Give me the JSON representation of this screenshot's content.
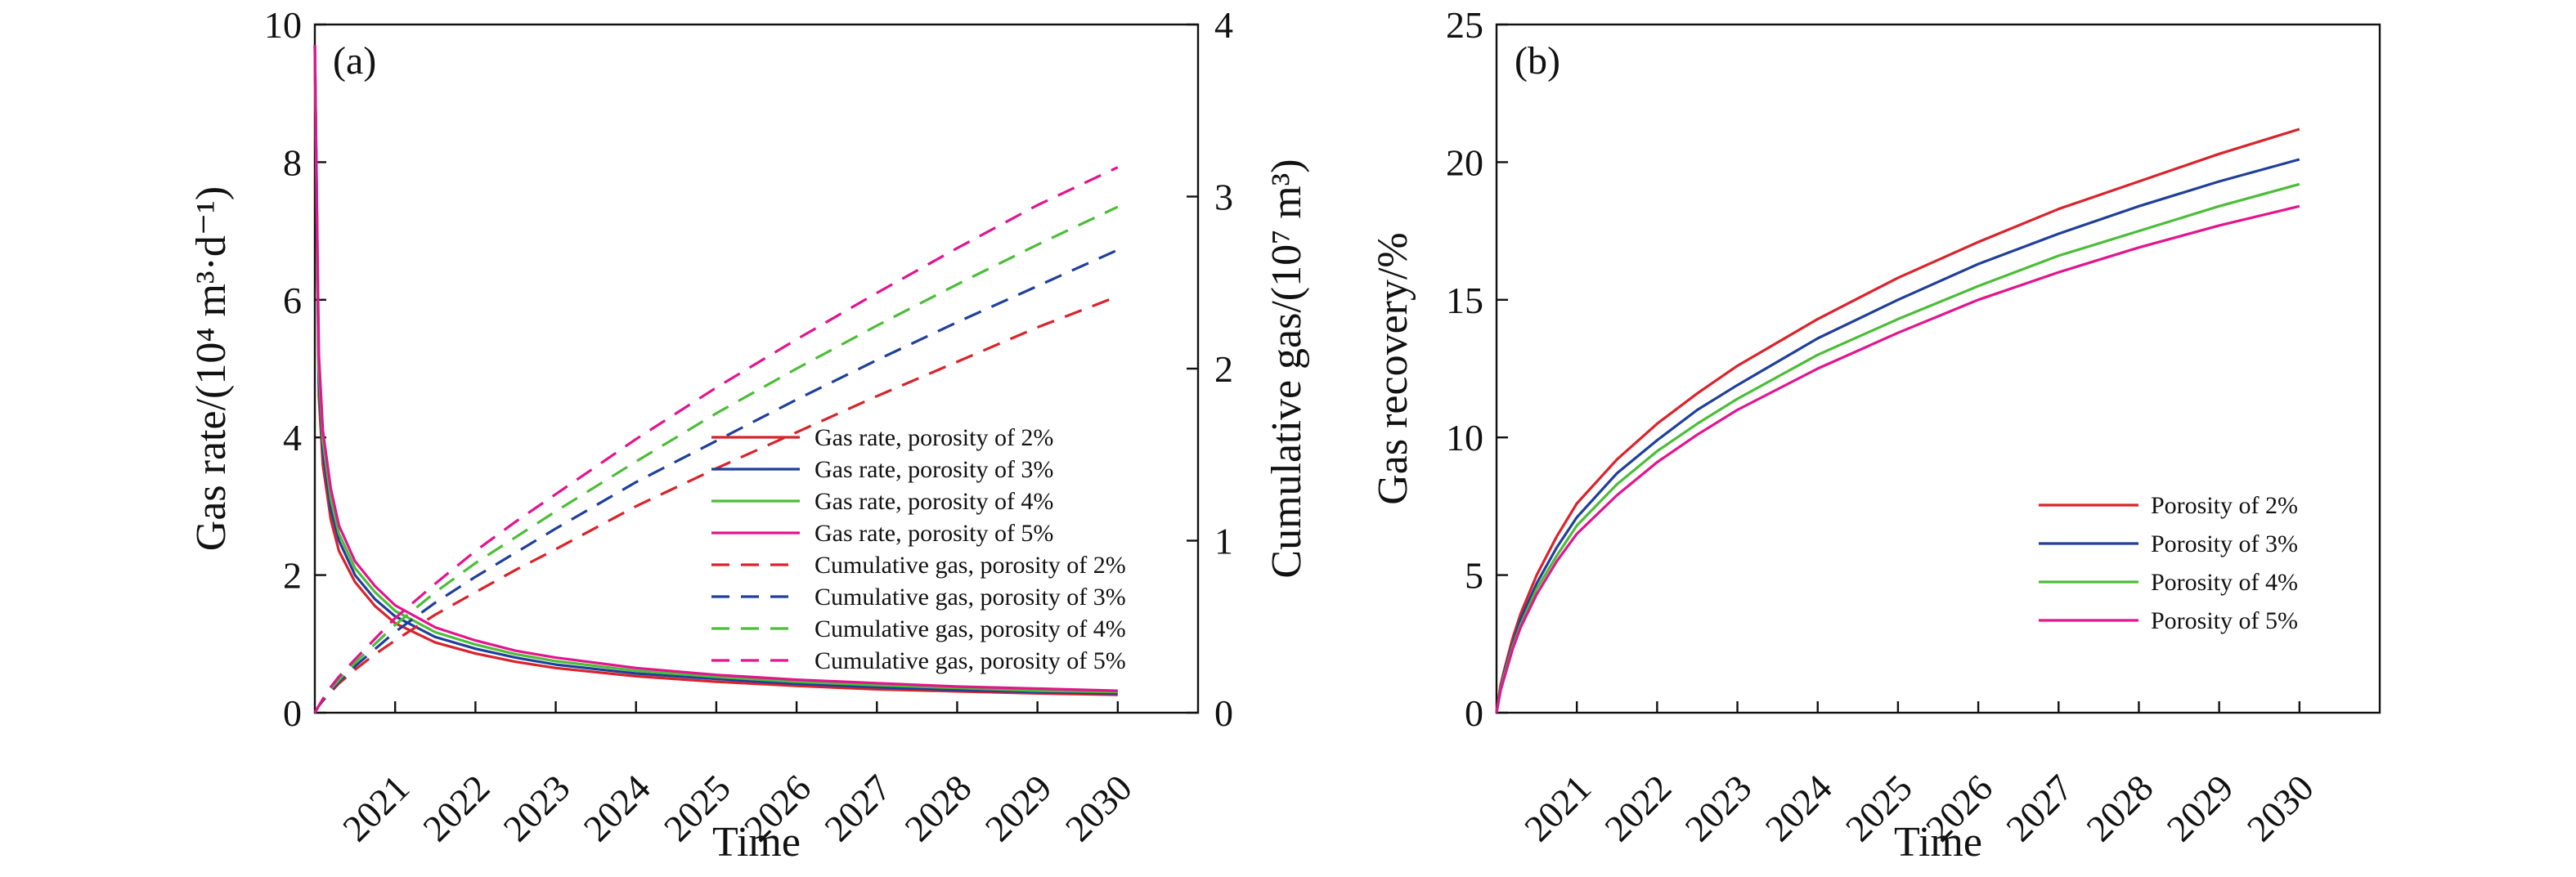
{
  "colors": {
    "p2": "#d9232b",
    "p3": "#1f3f9a",
    "p4": "#4cbd38",
    "p5": "#e2148e"
  },
  "chart_data": [
    {
      "type": "line",
      "panel_label": "(a)",
      "xlabel": "Time",
      "ylabel": "Gas rate/(10⁴ m³·d⁻¹)",
      "y2label": "Cumulative gas/(10⁷ m³)",
      "xlim": [
        2020.0,
        2031.0
      ],
      "ylim": [
        0,
        10
      ],
      "y2lim": [
        0,
        4
      ],
      "xticks": [
        2021,
        2022,
        2023,
        2024,
        2025,
        2026,
        2027,
        2028,
        2029,
        2030
      ],
      "yticks": [
        0,
        2,
        4,
        6,
        8,
        10
      ],
      "y2ticks": [
        0,
        1,
        2,
        3,
        4
      ],
      "legend_position": "center-right",
      "x": [
        2020.0,
        2020.05,
        2020.1,
        2020.2,
        2020.3,
        2020.5,
        2020.75,
        2021.0,
        2021.5,
        2022.0,
        2022.5,
        2023.0,
        2024.0,
        2025.0,
        2026.0,
        2027.0,
        2028.0,
        2029.0,
        2030.0
      ],
      "series": [
        {
          "name": "Gas rate, porosity of 2%",
          "axis": "left",
          "style": "solid",
          "color_key": "p2",
          "values": [
            9.7,
            4.6,
            3.6,
            2.8,
            2.35,
            1.9,
            1.55,
            1.3,
            1.02,
            0.86,
            0.74,
            0.65,
            0.53,
            0.45,
            0.39,
            0.34,
            0.31,
            0.28,
            0.26
          ]
        },
        {
          "name": "Gas rate, porosity of 3%",
          "axis": "left",
          "style": "solid",
          "color_key": "p3",
          "values": [
            9.7,
            4.8,
            3.8,
            2.95,
            2.5,
            2.0,
            1.65,
            1.4,
            1.1,
            0.93,
            0.8,
            0.7,
            0.57,
            0.49,
            0.42,
            0.37,
            0.33,
            0.3,
            0.28
          ]
        },
        {
          "name": "Gas rate, porosity of 4%",
          "axis": "left",
          "style": "solid",
          "color_key": "p4",
          "values": [
            9.7,
            5.0,
            3.95,
            3.1,
            2.6,
            2.1,
            1.75,
            1.48,
            1.17,
            0.99,
            0.85,
            0.75,
            0.61,
            0.52,
            0.45,
            0.4,
            0.36,
            0.32,
            0.3
          ]
        },
        {
          "name": "Gas rate, porosity of 5%",
          "axis": "left",
          "style": "solid",
          "color_key": "p5",
          "values": [
            9.7,
            5.2,
            4.1,
            3.25,
            2.72,
            2.2,
            1.84,
            1.56,
            1.24,
            1.05,
            0.9,
            0.8,
            0.65,
            0.55,
            0.48,
            0.43,
            0.38,
            0.35,
            0.32
          ]
        },
        {
          "name": "Cumulative gas, porosity of 2%",
          "axis": "right",
          "style": "dashed",
          "color_key": "p2",
          "values": [
            0,
            0.04,
            0.07,
            0.12,
            0.17,
            0.25,
            0.34,
            0.42,
            0.57,
            0.7,
            0.83,
            0.95,
            1.2,
            1.42,
            1.63,
            1.84,
            2.04,
            2.24,
            2.42
          ]
        },
        {
          "name": "Cumulative gas, porosity of 3%",
          "axis": "right",
          "style": "dashed",
          "color_key": "p3",
          "values": [
            0,
            0.04,
            0.07,
            0.13,
            0.18,
            0.27,
            0.37,
            0.47,
            0.64,
            0.79,
            0.93,
            1.07,
            1.34,
            1.58,
            1.82,
            2.05,
            2.27,
            2.48,
            2.69
          ]
        },
        {
          "name": "Cumulative gas, porosity of 4%",
          "axis": "right",
          "style": "dashed",
          "color_key": "p4",
          "values": [
            0,
            0.04,
            0.08,
            0.14,
            0.19,
            0.29,
            0.4,
            0.51,
            0.7,
            0.87,
            1.02,
            1.17,
            1.46,
            1.74,
            2.0,
            2.25,
            2.49,
            2.72,
            2.94
          ]
        },
        {
          "name": "Cumulative gas, porosity of 5%",
          "axis": "right",
          "style": "dashed",
          "color_key": "p5",
          "values": [
            0,
            0.04,
            0.08,
            0.15,
            0.21,
            0.31,
            0.43,
            0.55,
            0.75,
            0.94,
            1.11,
            1.27,
            1.59,
            1.89,
            2.17,
            2.44,
            2.7,
            2.95,
            3.17
          ]
        }
      ]
    },
    {
      "type": "line",
      "panel_label": "(b)",
      "xlabel": "Time",
      "ylabel": "Gas recovery/%",
      "xlim": [
        2020.0,
        2031.0
      ],
      "ylim": [
        0,
        25
      ],
      "xticks": [
        2021,
        2022,
        2023,
        2024,
        2025,
        2026,
        2027,
        2028,
        2029,
        2030
      ],
      "yticks": [
        0,
        5,
        10,
        15,
        20,
        25
      ],
      "legend_position": "center-right",
      "x": [
        2020.0,
        2020.05,
        2020.1,
        2020.2,
        2020.3,
        2020.5,
        2020.75,
        2021.0,
        2021.5,
        2022.0,
        2022.5,
        2023.0,
        2024.0,
        2025.0,
        2026.0,
        2027.0,
        2028.0,
        2029.0,
        2030.0
      ],
      "series": [
        {
          "name": "Porosity of 2%",
          "color_key": "p2",
          "values": [
            0,
            1.0,
            1.6,
            2.7,
            3.6,
            5.0,
            6.4,
            7.6,
            9.2,
            10.5,
            11.6,
            12.6,
            14.3,
            15.8,
            17.1,
            18.3,
            19.3,
            20.3,
            21.2
          ]
        },
        {
          "name": "Porosity of 3%",
          "color_key": "p3",
          "values": [
            0,
            0.9,
            1.5,
            2.5,
            3.4,
            4.7,
            6.0,
            7.1,
            8.7,
            9.9,
            11.0,
            11.9,
            13.6,
            15.0,
            16.3,
            17.4,
            18.4,
            19.3,
            20.1
          ]
        },
        {
          "name": "Porosity of 4%",
          "color_key": "p4",
          "values": [
            0,
            0.85,
            1.4,
            2.4,
            3.2,
            4.5,
            5.7,
            6.8,
            8.3,
            9.5,
            10.5,
            11.4,
            13.0,
            14.3,
            15.5,
            16.6,
            17.5,
            18.4,
            19.2
          ]
        },
        {
          "name": "Porosity of 5%",
          "color_key": "p5",
          "values": [
            0,
            0.8,
            1.3,
            2.3,
            3.1,
            4.3,
            5.5,
            6.5,
            7.9,
            9.1,
            10.1,
            11.0,
            12.5,
            13.8,
            15.0,
            16.0,
            16.9,
            17.7,
            18.4
          ]
        }
      ]
    }
  ]
}
